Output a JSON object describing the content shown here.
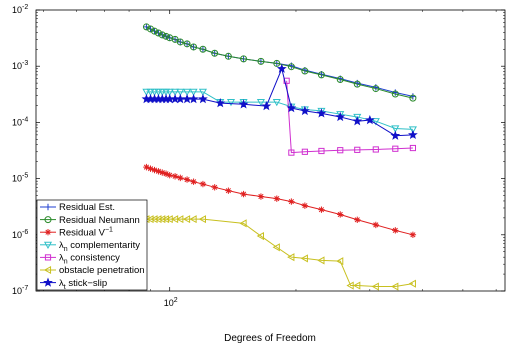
{
  "chart_data": {
    "type": "line",
    "xlabel": "Degrees of Freedom",
    "ylabel": "",
    "title": "",
    "xscale": "log",
    "yscale": "log",
    "xlim": [
      48,
      630
    ],
    "ylim": [
      1e-07,
      0.01
    ],
    "grid": false,
    "legend_position": "bottom-left",
    "x_ticks": [
      {
        "value": 100,
        "base": "10",
        "exp": "2"
      }
    ],
    "y_ticks": [
      {
        "value": 1e-07,
        "base": "10",
        "exp": "-7"
      },
      {
        "value": 1e-06,
        "base": "10",
        "exp": "-6"
      },
      {
        "value": 1e-05,
        "base": "10",
        "exp": "-5"
      },
      {
        "value": 0.0001,
        "base": "10",
        "exp": "-4"
      },
      {
        "value": 0.001,
        "base": "10",
        "exp": "-3"
      },
      {
        "value": 0.01,
        "base": "10",
        "exp": "-2"
      }
    ],
    "series": [
      {
        "name": "Residual Est.",
        "legend_parts": [
          {
            "t": "Residual Est."
          }
        ],
        "color": "#1f3fd0",
        "marker": "plus",
        "x": [
          88,
          90,
          92,
          94,
          96,
          98,
          100,
          103,
          106,
          110,
          114,
          120,
          128,
          138,
          150,
          165,
          180,
          195,
          210,
          230,
          255,
          280,
          310,
          345,
          380
        ],
        "y": [
          0.005,
          0.0046,
          0.0042,
          0.0039,
          0.0036,
          0.0034,
          0.0032,
          0.003,
          0.0027,
          0.0025,
          0.0022,
          0.002,
          0.0017,
          0.0015,
          0.00135,
          0.00122,
          0.00112,
          0.00102,
          0.00085,
          0.00072,
          0.0006,
          0.0005,
          0.00042,
          0.00034,
          0.00029
        ]
      },
      {
        "name": "Residual Neumann",
        "legend_parts": [
          {
            "t": "Residual Neumann"
          }
        ],
        "color": "#2a8a2a",
        "marker": "circle",
        "x": [
          88,
          90,
          92,
          94,
          96,
          98,
          100,
          103,
          106,
          110,
          114,
          120,
          128,
          138,
          150,
          165,
          180,
          195,
          210,
          230,
          255,
          280,
          310,
          345,
          380
        ],
        "y": [
          0.005,
          0.0046,
          0.0042,
          0.0039,
          0.0036,
          0.0034,
          0.0032,
          0.003,
          0.0027,
          0.0025,
          0.0022,
          0.002,
          0.0017,
          0.0015,
          0.00135,
          0.00122,
          0.00112,
          0.00098,
          0.00082,
          0.0007,
          0.00058,
          0.00048,
          0.0004,
          0.00032,
          0.00027
        ]
      },
      {
        "name": "Residual V^-1",
        "legend_parts": [
          {
            "t": "Residual V"
          },
          {
            "t": "−1",
            "sup": true
          }
        ],
        "color": "#e02020",
        "marker": "star",
        "x": [
          88,
          90,
          92,
          94,
          96,
          98,
          100,
          103,
          106,
          110,
          114,
          120,
          128,
          138,
          150,
          165,
          180,
          195,
          210,
          230,
          255,
          280,
          310,
          345,
          380
        ],
        "y": [
          1.6e-05,
          1.5e-05,
          1.42e-05,
          1.35e-05,
          1.28e-05,
          1.22e-05,
          1.15e-05,
          1.1e-05,
          1.03e-05,
          9.6e-06,
          8.8e-06,
          8e-06,
          7e-06,
          6.1e-06,
          5.3e-06,
          4.8e-06,
          4.4e-06,
          3.9e-06,
          3.3e-06,
          2.8e-06,
          2.3e-06,
          1.85e-06,
          1.5e-06,
          1.2e-06,
          1e-06
        ]
      },
      {
        "name": "λn complementarity",
        "legend_parts": [
          {
            "t": "λ"
          },
          {
            "t": "n",
            "sub": true
          },
          {
            "t": " complementarity"
          }
        ],
        "color": "#30c0c8",
        "marker": "tri-down",
        "x": [
          88,
          90,
          92,
          94,
          96,
          98,
          100,
          103,
          106,
          110,
          114,
          120,
          132,
          140,
          150,
          165,
          180,
          195,
          210,
          230,
          255,
          280,
          310,
          345,
          380
        ],
        "y": [
          0.00035,
          0.00035,
          0.00035,
          0.00035,
          0.00035,
          0.00035,
          0.00035,
          0.00035,
          0.00035,
          0.00035,
          0.00035,
          0.00035,
          0.00023,
          0.00023,
          0.00023,
          0.00023,
          0.00023,
          0.00019,
          0.00017,
          0.00016,
          0.00014,
          0.000125,
          0.000105,
          7.8e-05,
          7.5e-05
        ]
      },
      {
        "name": "λn consistency",
        "legend_parts": [
          {
            "t": "λ"
          },
          {
            "t": "n",
            "sub": true
          },
          {
            "t": " consistency"
          }
        ],
        "color": "#d030d0",
        "marker": "square",
        "x": [
          190,
          195,
          210,
          230,
          255,
          280,
          310,
          345,
          380
        ],
        "y": [
          0.00055,
          2.9e-05,
          3e-05,
          3.1e-05,
          3.2e-05,
          3.25e-05,
          3.3e-05,
          3.4e-05,
          3.5e-05
        ]
      },
      {
        "name": "obstacle penetration",
        "legend_parts": [
          {
            "t": "obstacle penetration"
          }
        ],
        "color": "#c8c020",
        "marker": "tri-left",
        "x": [
          88,
          90,
          92,
          94,
          96,
          98,
          100,
          103,
          106,
          110,
          114,
          120,
          150,
          165,
          180,
          195,
          210,
          230,
          255,
          270,
          280,
          310,
          345,
          380
        ],
        "y": [
          1.9e-06,
          1.9e-06,
          1.9e-06,
          1.9e-06,
          1.9e-06,
          1.9e-06,
          1.9e-06,
          1.9e-06,
          1.9e-06,
          1.9e-06,
          1.9e-06,
          1.9e-06,
          1.6e-06,
          9.5e-07,
          6e-07,
          4e-07,
          3.8e-07,
          3.5e-07,
          3.4e-07,
          1.25e-07,
          1.25e-07,
          1.2e-07,
          1.2e-07,
          1.35e-07
        ]
      },
      {
        "name": "λt stick-slip",
        "legend_parts": [
          {
            "t": "λ"
          },
          {
            "t": "t",
            "sub": true
          },
          {
            "t": " stick−slip"
          }
        ],
        "color": "#1010c8",
        "marker": "pentagram",
        "x": [
          88,
          90,
          92,
          94,
          96,
          98,
          100,
          103,
          106,
          110,
          114,
          120,
          132,
          150,
          170,
          185,
          195,
          210,
          230,
          255,
          280,
          300,
          345,
          380
        ],
        "y": [
          0.00026,
          0.00026,
          0.00026,
          0.00026,
          0.00026,
          0.00026,
          0.00026,
          0.00026,
          0.00026,
          0.00026,
          0.00026,
          0.00026,
          0.00022,
          0.00021,
          0.000195,
          0.0009,
          0.00018,
          0.00016,
          0.000145,
          0.000125,
          0.000105,
          0.00011,
          5.8e-05,
          6e-05
        ]
      }
    ]
  }
}
